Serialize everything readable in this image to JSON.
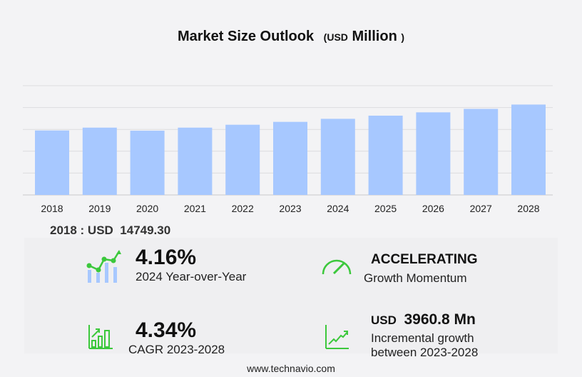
{
  "title": {
    "main": "Market Size Outlook",
    "unit_open": "(",
    "unit": "USD",
    "unit_main": "Million",
    "unit_close": ")"
  },
  "chart_data": {
    "type": "bar",
    "title": "Market Size Outlook (USD Million)",
    "categories": [
      "2018",
      "2019",
      "2020",
      "2021",
      "2022",
      "2023",
      "2024",
      "2025",
      "2026",
      "2027",
      "2028"
    ],
    "values": [
      14749.3,
      15400,
      14700,
      15400,
      16060,
      16720,
      17416,
      18140,
      18900,
      19690,
      20681
    ],
    "ylim": [
      0,
      25000
    ],
    "grid": true,
    "bar_color": "#a7c8ff"
  },
  "base_year": {
    "label": "2018 : USD",
    "value": "14749.30"
  },
  "stats": {
    "yoy": {
      "value": "4.16%",
      "label": "2024 Year-over-Year",
      "icon": "growth-chart-icon"
    },
    "momentum": {
      "value": "ACCELERATING",
      "label": "Growth Momentum",
      "icon": "speedometer-icon"
    },
    "cagr": {
      "value": "4.34%",
      "label": "CAGR 2023-2028",
      "icon": "bar-chart-arrow-icon"
    },
    "incremental": {
      "prefix": "USD",
      "value": "3960.8 Mn",
      "label1": "Incremental growth",
      "label2": "between 2023-2028",
      "icon": "line-chart-arrow-icon"
    }
  },
  "colors": {
    "accent": "#3cc83c",
    "bar": "#a7c8ff"
  },
  "footer": "www.technavio.com"
}
